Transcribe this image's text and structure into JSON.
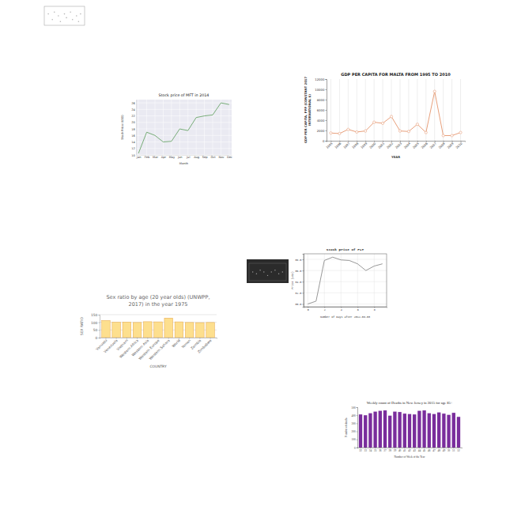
{
  "chart_data": [
    {
      "type": "scatter",
      "x": [
        1,
        2,
        2.5,
        3.5,
        4,
        5,
        5.5,
        6.5,
        7,
        8,
        8.5,
        9
      ],
      "values": [
        6,
        3,
        7,
        5,
        2,
        6,
        4,
        7,
        3,
        5,
        2,
        6
      ],
      "xlim": [
        0,
        10
      ],
      "ylim": [
        0,
        10
      ],
      "tick_labels": false,
      "color": "#b5b5b5",
      "marker": "circle"
    },
    {
      "type": "line",
      "title": "Stock price of MFT in 2014",
      "xlabel": "Month",
      "ylabel": "Stock Price (USD)",
      "categories": [
        "Jan",
        "Feb",
        "Mar",
        "Apr",
        "May",
        "Jun",
        "Jul",
        "Aug",
        "Sep",
        "Oct",
        "Nov",
        "Dec"
      ],
      "values": [
        10.5,
        17,
        16,
        14,
        14.2,
        18,
        17.5,
        21.5,
        22,
        22.3,
        26,
        25.5
      ],
      "ylim": [
        10,
        27
      ],
      "yticks": [
        10,
        12,
        14,
        16,
        18,
        20,
        22,
        24,
        26
      ],
      "color": "#6aa56a",
      "grid": true
    },
    {
      "type": "line",
      "title": "GDP PER CAPITA FOR MALTA FROM 1995 TO 2010",
      "xlabel": "YEAR",
      "ylabel": [
        "GDP PER CAPITA, PPP (CONSTANT 2017",
        "INTERNATIONAL $)"
      ],
      "categories": [
        "1995",
        "1996",
        "1997",
        "1998",
        "1999",
        "2000",
        "2001",
        "2002",
        "2003",
        "2004",
        "2005",
        "2006",
        "2007",
        "2008",
        "2009",
        "2010"
      ],
      "values": [
        1500,
        1400,
        2200,
        1700,
        1900,
        3600,
        3400,
        4700,
        1900,
        1800,
        3200,
        1600,
        9600,
        1000,
        1000,
        1600
      ],
      "ylim": [
        0,
        12000
      ],
      "yticks": [
        0,
        2000,
        4000,
        6000,
        8000,
        10000,
        12000
      ],
      "color": "#e8a07c",
      "marker": "circle",
      "grid": "x"
    },
    {
      "type": "scatter",
      "x": [
        1,
        2,
        3,
        4,
        5,
        6,
        7,
        8,
        9
      ],
      "values": [
        5,
        4,
        6,
        5,
        3,
        5,
        6,
        4,
        5
      ],
      "xlim": [
        0,
        10
      ],
      "ylim": [
        0,
        10
      ],
      "tick_labels": false,
      "color": "#9a9a9a",
      "marker": "circle"
    },
    {
      "type": "line",
      "title": "Stock price of PLT",
      "xlabel": "Number of Days after 2012-08-03",
      "ylabel": "Price (USD)",
      "x": [
        0,
        1,
        2,
        3,
        4,
        5,
        6,
        7,
        8,
        9
      ],
      "values": [
        30.0,
        30.5,
        37.8,
        38.4,
        37.9,
        37.8,
        37.2,
        36.0,
        36.8,
        37.2
      ],
      "xlim": [
        -0.5,
        9.5
      ],
      "xticks": [
        0,
        2,
        4,
        6,
        8
      ],
      "ylim": [
        29.5,
        39
      ],
      "yticks": [
        {
          "value": 30,
          "label": "30.0"
        },
        {
          "value": 32,
          "label": "32.0"
        },
        {
          "value": 34,
          "label": "34.0"
        },
        {
          "value": 36,
          "label": "36.0"
        },
        {
          "value": 38,
          "label": "38.0"
        }
      ],
      "color": "#8c8c8c",
      "grid": true
    },
    {
      "type": "bar",
      "title": [
        "Sex ratio by age (20 year olds) (UNWPP,",
        "2017) in the year 1975"
      ],
      "xlabel": "COUNTRY",
      "ylabel": "SEX RATIO",
      "categories": [
        "Vanuatu",
        "Venezuela",
        "Vietnam",
        "Western Africa",
        "Western Asia",
        "Western Europe",
        "Western Sahara",
        "World",
        "Yemen",
        "Zambia",
        "Zimbabwe"
      ],
      "values": [
        112,
        101,
        102,
        99,
        104,
        103,
        128,
        103,
        99,
        98,
        99
      ],
      "ylim": [
        0,
        150
      ],
      "yticks": [
        0,
        50,
        100,
        150
      ],
      "color": "#fddf8e",
      "grid": "y"
    },
    {
      "type": "bar",
      "title": "Weekly count of Deaths in New Jersey in 2015 for age 85+",
      "xlabel": "Number of Week of the Year",
      "ylabel": "Number of deaths",
      "categories": [
        "32",
        "33",
        "34",
        "35",
        "36",
        "37",
        "38",
        "39",
        "40",
        "41",
        "42",
        "43",
        "44",
        "45",
        "46",
        "47",
        "48",
        "49",
        "50",
        "51",
        "52"
      ],
      "values": [
        410,
        400,
        425,
        445,
        455,
        460,
        395,
        445,
        440,
        420,
        415,
        410,
        455,
        460,
        425,
        415,
        435,
        420,
        405,
        430,
        380
      ],
      "ylim": [
        0,
        500
      ],
      "yticks": [
        0,
        100,
        200,
        300,
        400,
        500
      ],
      "color": "#7a2d9c"
    }
  ]
}
